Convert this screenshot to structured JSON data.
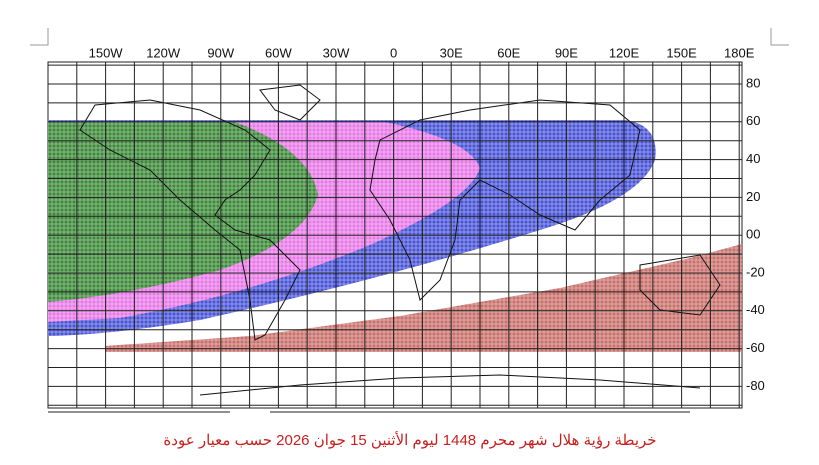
{
  "map": {
    "longitude_labels": [
      "150W",
      "120W",
      "90W",
      "60W",
      "30W",
      "0",
      "30E",
      "60E",
      "90E",
      "120E",
      "150E",
      "180E"
    ],
    "latitude_labels": [
      "80",
      "60",
      "40",
      "20",
      "00",
      "-20",
      "-40",
      "-60",
      "-80"
    ]
  },
  "caption": "خريطة رؤية هلال شهر محرم 1448 ليوم الأثنين 15 جوان 2026 حسب معيار عودة"
}
